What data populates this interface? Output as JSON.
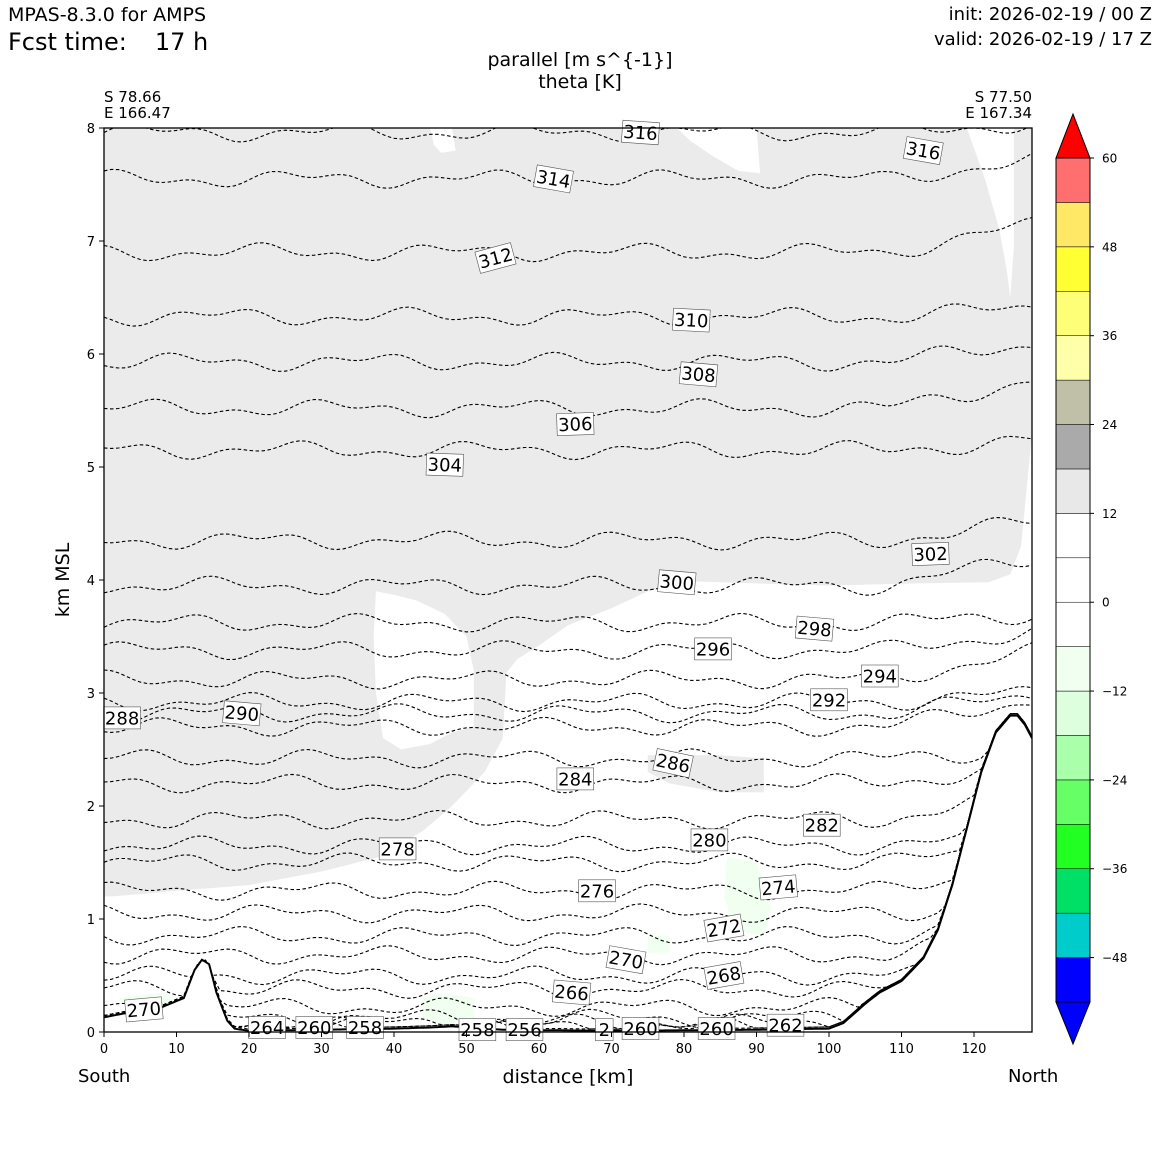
{
  "header": {
    "model": "MPAS-8.3.0 for AMPS",
    "fcst_label": "Fcst time:",
    "fcst_value": "17 h",
    "init": "init: 2026-02-19 / 00 Z",
    "valid": "valid: 2026-02-19 / 17 Z"
  },
  "plot": {
    "title_line1": "parallel [m s^{-1}]",
    "title_line2": "theta [K]",
    "left_lat": "S 78.66",
    "left_lon": "E 166.47",
    "right_lat": "S 77.50",
    "right_lon": "E 167.34",
    "south": "South",
    "north": "North"
  },
  "chart_data": {
    "type": "cross-section",
    "xlabel": "distance [km]",
    "ylabel": "km MSL",
    "xlim": [
      0,
      128
    ],
    "ylim": [
      0,
      8
    ],
    "xticks": [
      0,
      10,
      20,
      30,
      40,
      50,
      60,
      70,
      80,
      90,
      100,
      110,
      120
    ],
    "yticks": [
      0,
      1,
      2,
      3,
      4,
      5,
      6,
      7,
      8
    ],
    "terrain": [
      [
        0,
        0.13
      ],
      [
        4,
        0.18
      ],
      [
        8,
        0.22
      ],
      [
        11,
        0.3
      ],
      [
        12.5,
        0.55
      ],
      [
        13.5,
        0.64
      ],
      [
        14.5,
        0.6
      ],
      [
        15.5,
        0.35
      ],
      [
        17,
        0.1
      ],
      [
        18,
        0.03
      ],
      [
        20,
        0.01
      ],
      [
        30,
        0.02
      ],
      [
        40,
        0.03
      ],
      [
        45,
        0.04
      ],
      [
        48,
        0.05
      ],
      [
        55,
        0.02
      ],
      [
        70,
        0.01
      ],
      [
        90,
        0.02
      ],
      [
        100,
        0.03
      ],
      [
        102,
        0.08
      ],
      [
        105,
        0.25
      ],
      [
        107,
        0.35
      ],
      [
        110,
        0.45
      ],
      [
        113,
        0.65
      ],
      [
        115,
        0.9
      ],
      [
        117,
        1.3
      ],
      [
        119,
        1.8
      ],
      [
        121,
        2.3
      ],
      [
        123,
        2.65
      ],
      [
        125,
        2.8
      ],
      [
        126,
        2.8
      ],
      [
        127,
        2.72
      ],
      [
        128,
        2.6
      ]
    ],
    "theta_levels": [
      {
        "value": 316,
        "y": 7.96
      },
      {
        "value": 314,
        "y": 7.55
      },
      {
        "value": 312,
        "y": 6.9
      },
      {
        "value": 310,
        "y": 6.33
      },
      {
        "value": 308,
        "y": 5.93
      },
      {
        "value": 306,
        "y": 5.52
      },
      {
        "value": 304,
        "y": 5.15
      },
      {
        "value": 302,
        "y": 4.35
      },
      {
        "value": 300,
        "y": 3.95
      },
      {
        "value": 298,
        "y": 3.62
      },
      {
        "value": 296,
        "y": 3.38
      },
      {
        "value": 294,
        "y": 3.12
      },
      {
        "value": 292,
        "y": 2.92
      },
      {
        "value": 290,
        "y": 2.82
      },
      {
        "value": 288,
        "y": 2.7
      },
      {
        "value": 286,
        "y": 2.42
      },
      {
        "value": 284,
        "y": 2.2
      },
      {
        "value": 282,
        "y": 1.88
      },
      {
        "value": 280,
        "y": 1.65
      },
      {
        "value": 278,
        "y": 1.5
      },
      {
        "value": 276,
        "y": 1.25
      },
      {
        "value": 274,
        "y": 1.05
      },
      {
        "value": 272,
        "y": 0.85
      },
      {
        "value": 270,
        "y": 0.68
      },
      {
        "value": 268,
        "y": 0.5
      },
      {
        "value": 266,
        "y": 0.38
      },
      {
        "value": 264,
        "y": 0.22
      },
      {
        "value": 262,
        "y": 0.12
      },
      {
        "value": 260,
        "y": 0.08
      },
      {
        "value": 258,
        "y": 0.05
      },
      {
        "value": 256,
        "y": 0.03
      }
    ],
    "contour_labels": [
      {
        "text": "316",
        "x": 74,
        "y": 7.96,
        "angle": 4
      },
      {
        "text": "316",
        "x": 113,
        "y": 7.8,
        "angle": 10
      },
      {
        "text": "314",
        "x": 62,
        "y": 7.55,
        "angle": 10
      },
      {
        "text": "312",
        "x": 54,
        "y": 6.85,
        "angle": -15
      },
      {
        "text": "310",
        "x": 81,
        "y": 6.3,
        "angle": 3
      },
      {
        "text": "308",
        "x": 82,
        "y": 5.82,
        "angle": 5
      },
      {
        "text": "306",
        "x": 65,
        "y": 5.38,
        "angle": -2
      },
      {
        "text": "304",
        "x": 47,
        "y": 5.02,
        "angle": 2
      },
      {
        "text": "302",
        "x": 114,
        "y": 4.23,
        "angle": -2
      },
      {
        "text": "300",
        "x": 79,
        "y": 3.98,
        "angle": 5
      },
      {
        "text": "298",
        "x": 98,
        "y": 3.57,
        "angle": 5
      },
      {
        "text": "296",
        "x": 84,
        "y": 3.39,
        "angle": 0
      },
      {
        "text": "294",
        "x": 107,
        "y": 3.15,
        "angle": 0
      },
      {
        "text": "292",
        "x": 100,
        "y": 2.94,
        "angle": 0
      },
      {
        "text": "290",
        "x": 19,
        "y": 2.82,
        "angle": 5
      },
      {
        "text": "288",
        "x": 2.5,
        "y": 2.78,
        "angle": 0
      },
      {
        "text": "286",
        "x": 78.5,
        "y": 2.38,
        "angle": 12
      },
      {
        "text": "284",
        "x": 65,
        "y": 2.24,
        "angle": 0
      },
      {
        "text": "282",
        "x": 99,
        "y": 1.83,
        "angle": 0
      },
      {
        "text": "280",
        "x": 83.5,
        "y": 1.7,
        "angle": 0
      },
      {
        "text": "278",
        "x": 40.5,
        "y": 1.62,
        "angle": 0
      },
      {
        "text": "276",
        "x": 68,
        "y": 1.25,
        "angle": 0
      },
      {
        "text": "274",
        "x": 93,
        "y": 1.28,
        "angle": -5
      },
      {
        "text": "272",
        "x": 85.5,
        "y": 0.92,
        "angle": -10
      },
      {
        "text": "270",
        "x": 72,
        "y": 0.64,
        "angle": 10
      },
      {
        "text": "270",
        "x": 5.5,
        "y": 0.2,
        "angle": -5
      },
      {
        "text": "268",
        "x": 85.5,
        "y": 0.5,
        "angle": -10
      },
      {
        "text": "266",
        "x": 64.5,
        "y": 0.35,
        "angle": 5
      },
      {
        "text": "264",
        "x": 22.5,
        "y": 0.04,
        "angle": 0
      },
      {
        "text": "260",
        "x": 29,
        "y": 0.04,
        "angle": 0
      },
      {
        "text": "258",
        "x": 36,
        "y": 0.04,
        "angle": 0
      },
      {
        "text": "258",
        "x": 51.5,
        "y": 0.02,
        "angle": 0
      },
      {
        "text": "256",
        "x": 58,
        "y": 0.02,
        "angle": 0
      },
      {
        "text": "2",
        "x": 69,
        "y": 0.02,
        "angle": 0
      },
      {
        "text": "260",
        "x": 74,
        "y": 0.03,
        "angle": 0
      },
      {
        "text": "260",
        "x": 84.5,
        "y": 0.03,
        "angle": 0
      },
      {
        "text": "262",
        "x": 94,
        "y": 0.06,
        "angle": 0
      }
    ],
    "colorbar": {
      "labels": [
        "60",
        "48",
        "36",
        "24",
        "12",
        "0",
        "−12",
        "−24",
        "−36",
        "−48"
      ],
      "label_values": [
        60,
        48,
        36,
        24,
        12,
        0,
        -12,
        -24,
        -36,
        -48
      ],
      "vmin": -54,
      "vmax": 60,
      "bands": [
        {
          "lo": -54,
          "hi": -48,
          "color": "#0000ff"
        },
        {
          "lo": -48,
          "hi": -42,
          "color": "#00cccc"
        },
        {
          "lo": -42,
          "hi": -36,
          "color": "#00e066"
        },
        {
          "lo": -36,
          "hi": -30,
          "color": "#22ff22"
        },
        {
          "lo": -30,
          "hi": -24,
          "color": "#66ff66"
        },
        {
          "lo": -24,
          "hi": -18,
          "color": "#aaffaa"
        },
        {
          "lo": -18,
          "hi": -12,
          "color": "#ddffdd"
        },
        {
          "lo": -12,
          "hi": -6,
          "color": "#f0fff0"
        },
        {
          "lo": -6,
          "hi": 0,
          "color": "#ffffff"
        },
        {
          "lo": 0,
          "hi": 6,
          "color": "#ffffff"
        },
        {
          "lo": 6,
          "hi": 12,
          "color": "#ffffff"
        },
        {
          "lo": 12,
          "hi": 18,
          "color": "#e8e8e8"
        },
        {
          "lo": 18,
          "hi": 24,
          "color": "#aaaaaa"
        },
        {
          "lo": 24,
          "hi": 30,
          "color": "#c0c0a8"
        },
        {
          "lo": 30,
          "hi": 36,
          "color": "#ffffaa"
        },
        {
          "lo": 36,
          "hi": 42,
          "color": "#ffff77"
        },
        {
          "lo": 42,
          "hi": 48,
          "color": "#ffff33"
        },
        {
          "lo": 48,
          "hi": 54,
          "color": "#ffe866"
        },
        {
          "lo": 54,
          "hi": 60,
          "color": "#ff6f6f"
        },
        {
          "lo": 60,
          "hi": 66,
          "color": "#ff0000"
        }
      ],
      "under_color": "#0000ff",
      "over_color": "#ff0000"
    },
    "shading": {
      "fill_color": "#ebebeb",
      "weak_negative_color": "#f0fff0"
    }
  }
}
